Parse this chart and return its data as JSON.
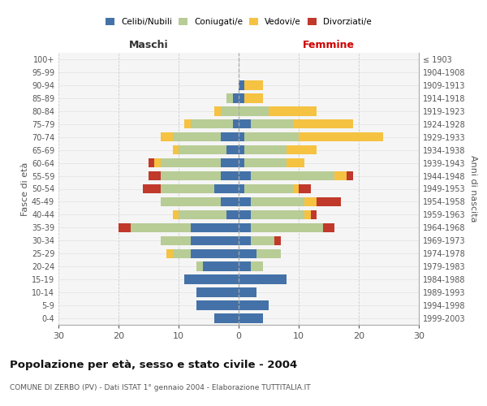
{
  "age_groups": [
    "0-4",
    "5-9",
    "10-14",
    "15-19",
    "20-24",
    "25-29",
    "30-34",
    "35-39",
    "40-44",
    "45-49",
    "50-54",
    "55-59",
    "60-64",
    "65-69",
    "70-74",
    "75-79",
    "80-84",
    "85-89",
    "90-94",
    "95-99",
    "100+"
  ],
  "birth_years": [
    "1999-2003",
    "1994-1998",
    "1989-1993",
    "1984-1988",
    "1979-1983",
    "1974-1978",
    "1969-1973",
    "1964-1968",
    "1959-1963",
    "1954-1958",
    "1949-1953",
    "1944-1948",
    "1939-1943",
    "1934-1938",
    "1929-1933",
    "1924-1928",
    "1919-1923",
    "1914-1918",
    "1909-1913",
    "1904-1908",
    "≤ 1903"
  ],
  "maschi": {
    "celibi": [
      4,
      7,
      7,
      9,
      6,
      8,
      8,
      8,
      2,
      3,
      4,
      3,
      3,
      2,
      3,
      1,
      0,
      1,
      0,
      0,
      0
    ],
    "coniugati": [
      0,
      0,
      0,
      0,
      1,
      3,
      5,
      10,
      8,
      10,
      9,
      10,
      10,
      8,
      8,
      7,
      3,
      1,
      0,
      0,
      0
    ],
    "vedovi": [
      0,
      0,
      0,
      0,
      0,
      1,
      0,
      0,
      1,
      0,
      0,
      0,
      1,
      1,
      2,
      1,
      1,
      0,
      0,
      0,
      0
    ],
    "divorziati": [
      0,
      0,
      0,
      0,
      0,
      0,
      0,
      2,
      0,
      0,
      3,
      2,
      1,
      0,
      0,
      0,
      0,
      0,
      0,
      0,
      0
    ]
  },
  "femmine": {
    "nubili": [
      4,
      5,
      3,
      8,
      2,
      3,
      2,
      2,
      2,
      2,
      1,
      2,
      1,
      1,
      1,
      2,
      0,
      1,
      1,
      0,
      0
    ],
    "coniugate": [
      0,
      0,
      0,
      0,
      2,
      4,
      4,
      12,
      9,
      9,
      8,
      14,
      7,
      7,
      9,
      7,
      5,
      0,
      0,
      0,
      0
    ],
    "vedove": [
      0,
      0,
      0,
      0,
      0,
      0,
      0,
      0,
      1,
      2,
      1,
      2,
      3,
      5,
      14,
      10,
      8,
      3,
      3,
      0,
      0
    ],
    "divorziate": [
      0,
      0,
      0,
      0,
      0,
      0,
      1,
      2,
      1,
      4,
      2,
      1,
      0,
      0,
      0,
      0,
      0,
      0,
      0,
      0,
      0
    ]
  },
  "colors": {
    "celibi_nubili": "#4472a8",
    "coniugati": "#b8cc96",
    "vedovi": "#f5c242",
    "divorziati": "#c0392b"
  },
  "xlim": 30,
  "title": "Popolazione per età, sesso e stato civile - 2004",
  "subtitle": "COMUNE DI ZERBO (PV) - Dati ISTAT 1° gennaio 2004 - Elaborazione TUTTITALIA.IT",
  "ylabel_left": "Fasce di età",
  "ylabel_right": "Anni di nascita",
  "xlabel_left": "Maschi",
  "xlabel_right": "Femmine"
}
